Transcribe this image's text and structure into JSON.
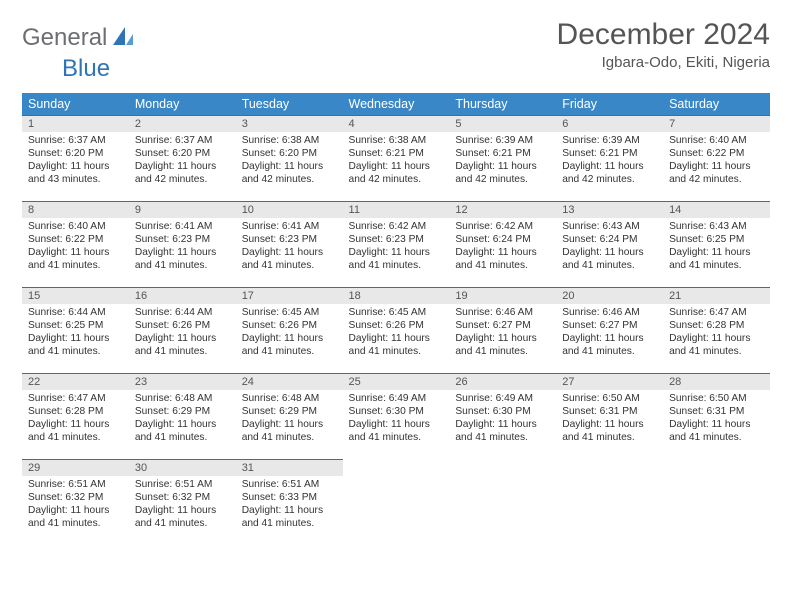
{
  "branding": {
    "word1": "General",
    "word2": "Blue",
    "color_gray": "#6d6e71",
    "color_blue": "#2f75b5"
  },
  "header": {
    "title": "December 2024",
    "location": "Igbara-Odo, Ekiti, Nigeria"
  },
  "styling": {
    "header_bg": "#3a87c8",
    "header_text": "#ffffff",
    "row_border": "#3a6ea5",
    "daynum_bg": "#e8e8e8",
    "page_bg": "#ffffff",
    "body_text": "#333333",
    "font_family": "Arial"
  },
  "day_names": [
    "Sunday",
    "Monday",
    "Tuesday",
    "Wednesday",
    "Thursday",
    "Friday",
    "Saturday"
  ],
  "weeks": [
    [
      {
        "n": "1",
        "sr": "6:37 AM",
        "ss": "6:20 PM",
        "dl": "11 hours and 43 minutes."
      },
      {
        "n": "2",
        "sr": "6:37 AM",
        "ss": "6:20 PM",
        "dl": "11 hours and 42 minutes."
      },
      {
        "n": "3",
        "sr": "6:38 AM",
        "ss": "6:20 PM",
        "dl": "11 hours and 42 minutes."
      },
      {
        "n": "4",
        "sr": "6:38 AM",
        "ss": "6:21 PM",
        "dl": "11 hours and 42 minutes."
      },
      {
        "n": "5",
        "sr": "6:39 AM",
        "ss": "6:21 PM",
        "dl": "11 hours and 42 minutes."
      },
      {
        "n": "6",
        "sr": "6:39 AM",
        "ss": "6:21 PM",
        "dl": "11 hours and 42 minutes."
      },
      {
        "n": "7",
        "sr": "6:40 AM",
        "ss": "6:22 PM",
        "dl": "11 hours and 42 minutes."
      }
    ],
    [
      {
        "n": "8",
        "sr": "6:40 AM",
        "ss": "6:22 PM",
        "dl": "11 hours and 41 minutes."
      },
      {
        "n": "9",
        "sr": "6:41 AM",
        "ss": "6:23 PM",
        "dl": "11 hours and 41 minutes."
      },
      {
        "n": "10",
        "sr": "6:41 AM",
        "ss": "6:23 PM",
        "dl": "11 hours and 41 minutes."
      },
      {
        "n": "11",
        "sr": "6:42 AM",
        "ss": "6:23 PM",
        "dl": "11 hours and 41 minutes."
      },
      {
        "n": "12",
        "sr": "6:42 AM",
        "ss": "6:24 PM",
        "dl": "11 hours and 41 minutes."
      },
      {
        "n": "13",
        "sr": "6:43 AM",
        "ss": "6:24 PM",
        "dl": "11 hours and 41 minutes."
      },
      {
        "n": "14",
        "sr": "6:43 AM",
        "ss": "6:25 PM",
        "dl": "11 hours and 41 minutes."
      }
    ],
    [
      {
        "n": "15",
        "sr": "6:44 AM",
        "ss": "6:25 PM",
        "dl": "11 hours and 41 minutes."
      },
      {
        "n": "16",
        "sr": "6:44 AM",
        "ss": "6:26 PM",
        "dl": "11 hours and 41 minutes."
      },
      {
        "n": "17",
        "sr": "6:45 AM",
        "ss": "6:26 PM",
        "dl": "11 hours and 41 minutes."
      },
      {
        "n": "18",
        "sr": "6:45 AM",
        "ss": "6:26 PM",
        "dl": "11 hours and 41 minutes."
      },
      {
        "n": "19",
        "sr": "6:46 AM",
        "ss": "6:27 PM",
        "dl": "11 hours and 41 minutes."
      },
      {
        "n": "20",
        "sr": "6:46 AM",
        "ss": "6:27 PM",
        "dl": "11 hours and 41 minutes."
      },
      {
        "n": "21",
        "sr": "6:47 AM",
        "ss": "6:28 PM",
        "dl": "11 hours and 41 minutes."
      }
    ],
    [
      {
        "n": "22",
        "sr": "6:47 AM",
        "ss": "6:28 PM",
        "dl": "11 hours and 41 minutes."
      },
      {
        "n": "23",
        "sr": "6:48 AM",
        "ss": "6:29 PM",
        "dl": "11 hours and 41 minutes."
      },
      {
        "n": "24",
        "sr": "6:48 AM",
        "ss": "6:29 PM",
        "dl": "11 hours and 41 minutes."
      },
      {
        "n": "25",
        "sr": "6:49 AM",
        "ss": "6:30 PM",
        "dl": "11 hours and 41 minutes."
      },
      {
        "n": "26",
        "sr": "6:49 AM",
        "ss": "6:30 PM",
        "dl": "11 hours and 41 minutes."
      },
      {
        "n": "27",
        "sr": "6:50 AM",
        "ss": "6:31 PM",
        "dl": "11 hours and 41 minutes."
      },
      {
        "n": "28",
        "sr": "6:50 AM",
        "ss": "6:31 PM",
        "dl": "11 hours and 41 minutes."
      }
    ],
    [
      {
        "n": "29",
        "sr": "6:51 AM",
        "ss": "6:32 PM",
        "dl": "11 hours and 41 minutes."
      },
      {
        "n": "30",
        "sr": "6:51 AM",
        "ss": "6:32 PM",
        "dl": "11 hours and 41 minutes."
      },
      {
        "n": "31",
        "sr": "6:51 AM",
        "ss": "6:33 PM",
        "dl": "11 hours and 41 minutes."
      },
      null,
      null,
      null,
      null
    ]
  ],
  "labels": {
    "sunrise": "Sunrise:",
    "sunset": "Sunset:",
    "daylight": "Daylight:"
  }
}
